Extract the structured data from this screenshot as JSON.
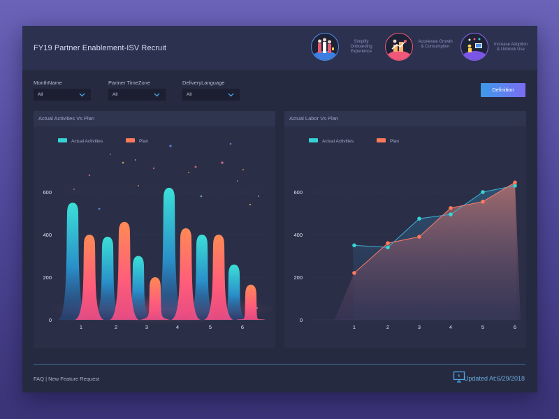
{
  "header": {
    "title": "FY19 Partner Enablement-ISV Recruit",
    "badges": [
      {
        "label": "Simplify Onboarding Experience",
        "icon": "people-icon",
        "color": "#4e8ee6"
      },
      {
        "label": "Accelerate Growth & Consumption",
        "icon": "growth-icon",
        "color": "#f0587a"
      },
      {
        "label": "Increase Adoption & Unblock Use",
        "icon": "adoption-icon",
        "color": "#8b66f0"
      }
    ]
  },
  "filters": [
    {
      "label": "MonthName",
      "value": "All"
    },
    {
      "label": "Partner TimeZone",
      "value": "All"
    },
    {
      "label": "DeliveryLanguage",
      "value": "All"
    }
  ],
  "definition_label": "Definition",
  "panels": {
    "left_title": "Actual Activities Vs Plan",
    "right_title": "Actual Labor Vs Plan"
  },
  "footer": {
    "faq": "FAQ",
    "separator": "|",
    "new_feature": "New Feature Request",
    "updated": "Updated At:6/29/2018"
  },
  "colors": {
    "actual": "#36d3d6",
    "plan": "#ff7a5c"
  },
  "chart_data": [
    {
      "type": "bar",
      "title": "Actual Activities Vs Plan",
      "categories": [
        "1",
        "2",
        "3",
        "4",
        "5",
        "6"
      ],
      "series": [
        {
          "name": "Actual Activities",
          "values": [
            550,
            390,
            300,
            620,
            400,
            260
          ]
        },
        {
          "name": "Plan",
          "values": [
            400,
            460,
            200,
            430,
            400,
            165
          ]
        }
      ],
      "yticks": [
        "0",
        "200",
        "400",
        "600"
      ],
      "ylim": [
        0,
        600
      ],
      "xlabel": "",
      "ylabel": "",
      "legend": "top-left"
    },
    {
      "type": "area",
      "title": "Actual Labor Vs Plan",
      "categories": [
        "1",
        "2",
        "3",
        "4",
        "5",
        "6"
      ],
      "series": [
        {
          "name": "Actual Activities",
          "values": [
            350,
            340,
            475,
            495,
            600,
            630
          ]
        },
        {
          "name": "Plan",
          "values": [
            220,
            360,
            390,
            525,
            555,
            645
          ]
        }
      ],
      "yticks": [
        "0",
        "200",
        "400",
        "600"
      ],
      "ylim": [
        0,
        600
      ],
      "xlabel": "",
      "ylabel": "",
      "legend": "top-left"
    }
  ]
}
